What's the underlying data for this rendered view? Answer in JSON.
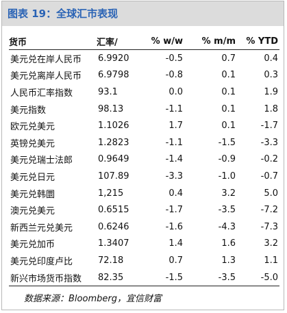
{
  "title": "图表 19：全球汇市表现",
  "table": {
    "headers": [
      "货币",
      "汇率/",
      "% w/w",
      "% m/m",
      "% YTD"
    ],
    "rows": [
      [
        "美元兑在岸人民币",
        "6.9920",
        "-0.5",
        "0.7",
        "0.4"
      ],
      [
        "美元兑离岸人民币",
        "6.9798",
        "-0.8",
        "0.1",
        "0.3"
      ],
      [
        "人民币汇率指数",
        "93.1",
        "0.0",
        "0.1",
        "1.9"
      ],
      [
        "美元指数",
        "98.13",
        "-1.1",
        "0.1",
        "1.8"
      ],
      [
        "欧元兑美元",
        "1.1026",
        "1.7",
        "0.1",
        "-1.7"
      ],
      [
        "英镑兑美元",
        "1.2823",
        "-1.1",
        "-1.5",
        "-3.3"
      ],
      [
        "美元兑瑞士法郎",
        "0.9649",
        "-1.4",
        "-0.9",
        "-0.2"
      ],
      [
        "美元兑日元",
        "107.89",
        "-3.3",
        "-1.0",
        "-0.7"
      ],
      [
        "美元兑韩圜",
        "1,215",
        "0.4",
        "3.2",
        "5.0"
      ],
      [
        "澳元兑美元",
        "0.6515",
        "-1.7",
        "-3.5",
        "-7.2"
      ],
      [
        "新西兰元兑美元",
        "0.6246",
        "-1.6",
        "-4.3",
        "-7.3"
      ],
      [
        "美元兑加币",
        "1.3407",
        "1.4",
        "1.6",
        "3.2"
      ],
      [
        "美元兑印度卢比",
        "72.18",
        "0.7",
        "1.3",
        "1.1"
      ],
      [
        "新兴市场货币指数",
        "82.35",
        "-1.5",
        "-3.5",
        "-5.0"
      ]
    ]
  },
  "source": "数据来源：Bloomberg，宜信财富"
}
